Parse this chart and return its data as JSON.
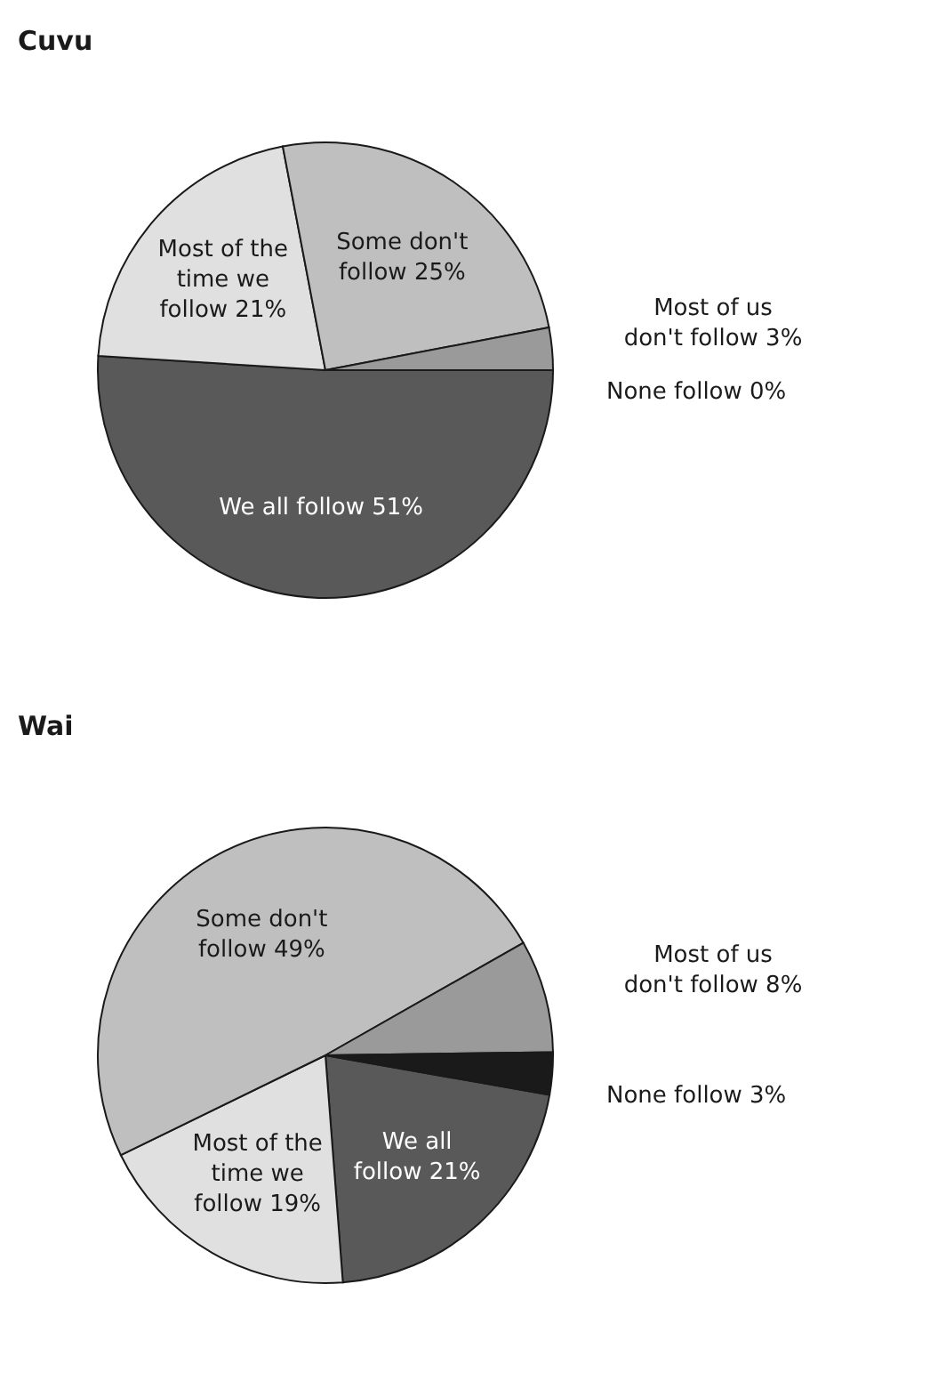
{
  "chart_data": [
    {
      "type": "pie",
      "title": "Cuvu",
      "categories": [
        "We all follow",
        "Most of the time we follow",
        "Some don't follow",
        "Most of us don't follow",
        "None follow"
      ],
      "values": [
        51,
        21,
        25,
        3,
        0
      ],
      "value_labels": [
        "51%",
        "21%",
        "25%",
        "3%",
        "0%"
      ],
      "colors": [
        "#595959",
        "#e0e0e0",
        "#bfbfbf",
        "#9a9a9a",
        "#1a1a1a"
      ]
    },
    {
      "type": "pie",
      "title": "Wai",
      "categories": [
        "We all follow",
        "Most of the time we follow",
        "Some don't follow",
        "Most of us don't follow",
        "None follow"
      ],
      "values": [
        21,
        19,
        49,
        8,
        3
      ],
      "value_labels": [
        "21%",
        "19%",
        "49%",
        "8%",
        "3%"
      ],
      "colors": [
        "#595959",
        "#e0e0e0",
        "#bfbfbf",
        "#9a9a9a",
        "#1a1a1a"
      ]
    }
  ]
}
